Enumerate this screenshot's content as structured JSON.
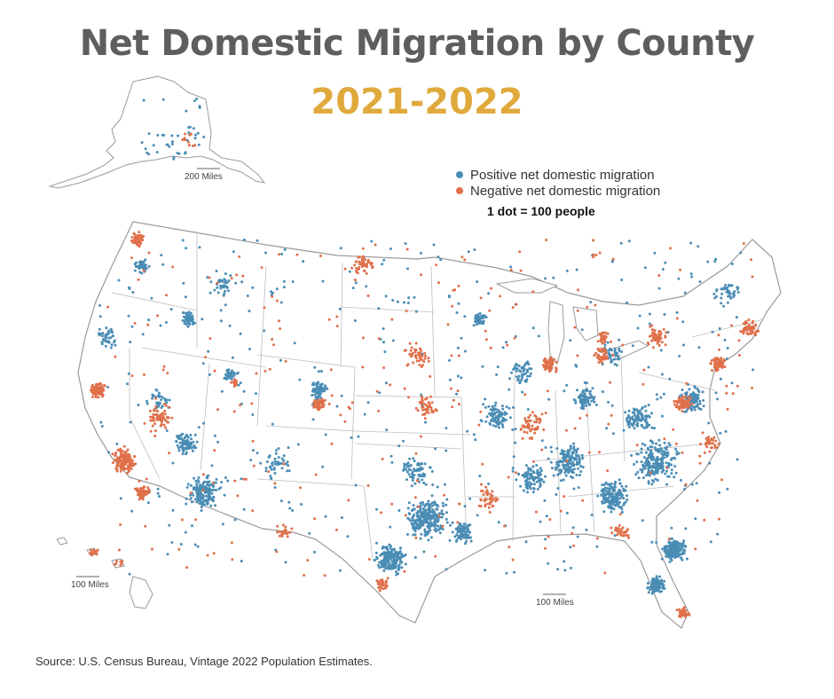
{
  "title": "Net Domestic Migration by County",
  "subtitle": "2021-2022",
  "legend": {
    "positive_label": "Positive net domestic migration",
    "negative_label": "Negative net domestic migration",
    "scale_label": "1 dot = 100 people"
  },
  "colors": {
    "positive": "#4a8db5",
    "negative": "#e0704a",
    "title": "#5e5e5e",
    "subtitle": "#e0a93c",
    "state_border": "#bdbdbd"
  },
  "scale_bars": {
    "alaska": "200 Miles",
    "hawaii": "100 Miles",
    "mainland": "100 Miles"
  },
  "source": "Source: U.S. Census Bureau, Vintage 2022 Population Estimates."
}
